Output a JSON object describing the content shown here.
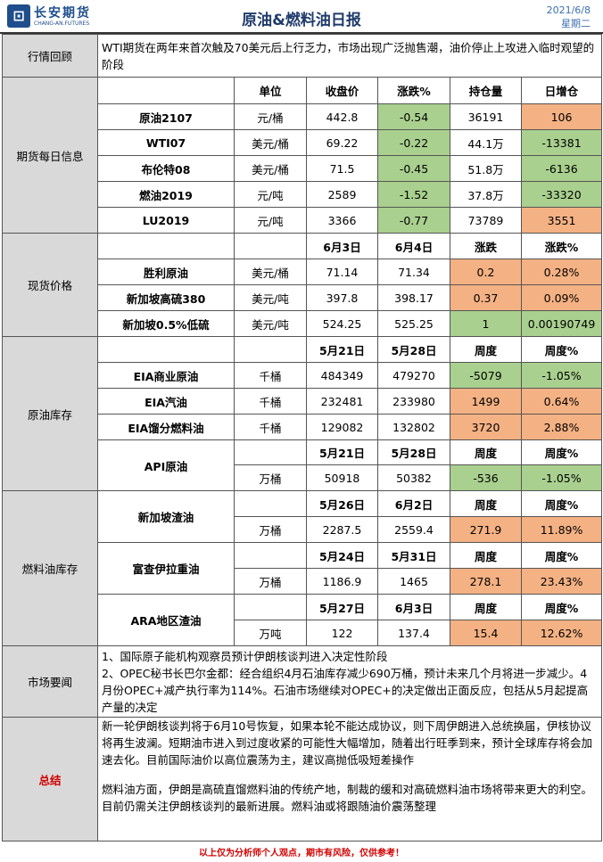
{
  "header": {
    "logo_cn": "长安期货",
    "logo_en": "CHANG-AN.FUTURES",
    "title": "原油&燃料油日报",
    "date": "2021/6/8",
    "weekday": "星期二"
  },
  "market_review": {
    "label": "行情回顾",
    "text": "WTI期货在两年来首次触及70美元后上行乏力，市场出现广泛抛售潮，油价停止上攻进入临时观望的阶段"
  },
  "futures": {
    "label": "期货每日信息",
    "columns": [
      "单位",
      "收盘价",
      "涨跌%",
      "持仓量",
      "日增仓"
    ],
    "rows": [
      {
        "name": "原油2107",
        "unit": "元/桶",
        "close": "442.8",
        "chg": "-0.54",
        "oi": "36191",
        "doi": "106"
      },
      {
        "name": "WTI07",
        "unit": "美元/桶",
        "close": "69.22",
        "chg": "-0.22",
        "oi": "44.1万",
        "doi": "-13381"
      },
      {
        "name": "布伦特08",
        "unit": "美元/桶",
        "close": "71.5",
        "chg": "-0.45",
        "oi": "51.8万",
        "doi": "-6136"
      },
      {
        "name": "燃油2019",
        "unit": "元/吨",
        "close": "2589",
        "chg": "-1.52",
        "oi": "37.8万",
        "doi": "-33320"
      },
      {
        "name": "LU2019",
        "unit": "元/吨",
        "close": "3366",
        "chg": "-0.77",
        "oi": "73789",
        "doi": "3551"
      }
    ]
  },
  "spot": {
    "label": "现货价格",
    "columns": [
      "6月3日",
      "6月4日",
      "涨跌",
      "涨跌%"
    ],
    "rows": [
      {
        "name": "胜利原油",
        "unit": "美元/桶",
        "d1": "71.14",
        "d2": "71.34",
        "chg": "0.2",
        "pct": "0.28%"
      },
      {
        "name": "新加坡高硫380",
        "unit": "美元/吨",
        "d1": "397.8",
        "d2": "398.17",
        "chg": "0.37",
        "pct": "0.09%"
      },
      {
        "name": "新加坡0.5%低硫",
        "unit": "美元/吨",
        "d1": "524.25",
        "d2": "525.25",
        "chg": "1",
        "pct": "0.00190749"
      }
    ]
  },
  "crude_inv": {
    "label": "原油库存",
    "columns": [
      "5月21日",
      "5月28日",
      "周度",
      "周度%"
    ],
    "rows": [
      {
        "name": "EIA商业原油",
        "unit": "千桶",
        "d1": "484349",
        "d2": "479270",
        "chg": "-5079",
        "pct": "-1.05%"
      },
      {
        "name": "EIA汽油",
        "unit": "千桶",
        "d1": "232481",
        "d2": "233980",
        "chg": "1499",
        "pct": "0.64%"
      },
      {
        "name": "EIA馏分燃料油",
        "unit": "千桶",
        "d1": "129082",
        "d2": "132802",
        "chg": "3720",
        "pct": "2.88%"
      }
    ],
    "api": {
      "name": "API原油",
      "unit": "万桶",
      "columns": [
        "5月21日",
        "5月28日",
        "周度",
        "周度%"
      ],
      "d1": "50918",
      "d2": "50382",
      "chg": "-536",
      "pct": "-1.05%"
    }
  },
  "fuel_inv": {
    "label": "燃料油库存",
    "blocks": [
      {
        "name": "新加坡渣油",
        "unit": "万桶",
        "columns": [
          "5月26日",
          "6月2日",
          "周度",
          "周度%"
        ],
        "d1": "2287.5",
        "d2": "2559.4",
        "chg": "271.9",
        "pct": "11.89%"
      },
      {
        "name": "富查伊拉重油",
        "unit": "万桶",
        "columns": [
          "5月24日",
          "5月31日",
          "周度",
          "周度%"
        ],
        "d1": "1186.9",
        "d2": "1465",
        "chg": "278.1",
        "pct": "23.43%"
      },
      {
        "name": "ARA地区渣油",
        "unit": "万吨",
        "columns": [
          "5月27日",
          "6月3日",
          "周度",
          "周度%"
        ],
        "d1": "122",
        "d2": "137.4",
        "chg": "15.4",
        "pct": "12.62%"
      }
    ]
  },
  "news": {
    "label": "市场要闻",
    "item1": "1、国际原子能机构观察员预计伊朗核谈判进入决定性阶段",
    "item2": "2、OPEC秘书长巴尔金都：经合组织4月石油库存减少690万桶，预计未来几个月将进一步减少。4月份OPEC+减产执行率为114%。石油市场继续对OPEC+的决定做出正面反应，包括从5月起提高产量的决定"
  },
  "summary": {
    "label": "总结",
    "para1": "新一轮伊朗核谈判将于6月10号恢复，如果本轮不能达成协议，则下周伊朗进入总统换届，伊核协议将再生波澜。短期油市进入到过度收紧的可能性大幅增加，随着出行旺季到来，预计全球库存将会加速去化。目前国际油价以高位震荡为主，建议高抛低吸短差操作",
    "para2": "燃料油方面，伊朗是高硫直馏燃料油的传统产地，制裁的缓和对高硫燃料油市场将带来更大的利空。目前仍需关注伊朗核谈判的最新进展。燃料油或将跟随油价震荡整理"
  },
  "footer": "以上仅为分析师个人观点，期市有风险，仅供参考！"
}
